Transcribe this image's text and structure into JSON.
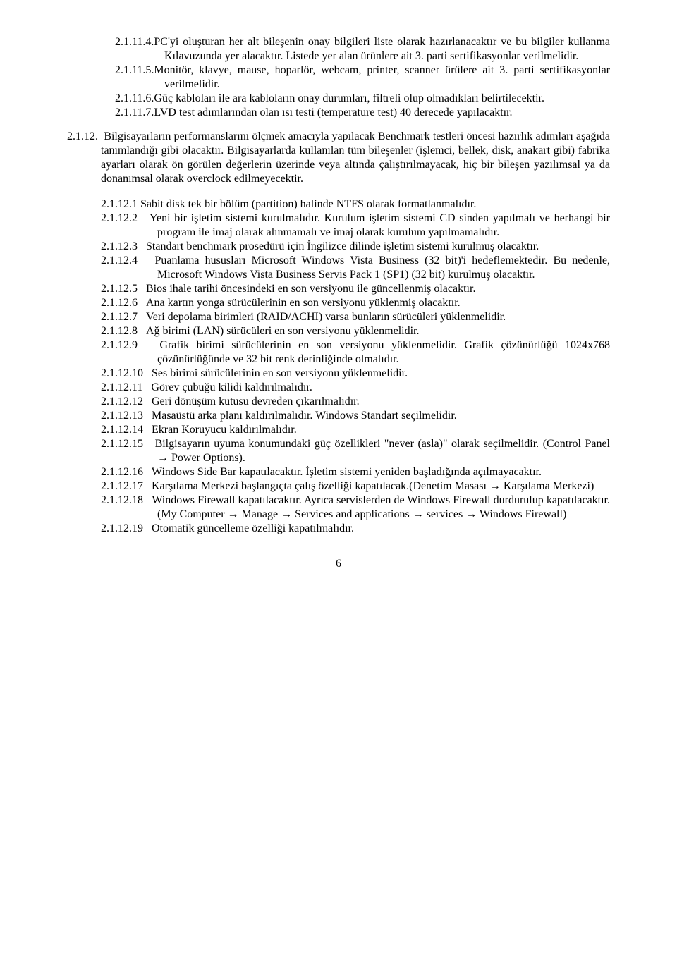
{
  "items11": [
    {
      "num": "2.1.11.4.",
      "text": "PC'yi oluşturan her alt bileşenin onay bilgileri liste olarak hazırlanacaktır ve bu bilgiler kullanma Kılavuzunda yer alacaktır. Listede yer alan ürünlere ait 3. parti sertifikasyonlar verilmelidir."
    },
    {
      "num": "2.1.11.5.",
      "text": "Monitör, klavye, mause, hoparlör, webcam, printer, scanner ürülere ait 3. parti sertifikasyonlar verilmelidir."
    },
    {
      "num": "2.1.11.6.",
      "text": "Güç kabloları ile ara kabloların onay durumları, filtreli olup olmadıkları belirtilecektir."
    },
    {
      "num": "2.1.11.7.",
      "text": "LVD test adımlarından olan ısı testi (temperature test) 40 derecede yapılacaktır."
    }
  ],
  "sec212": {
    "num": "2.1.12.",
    "intro": "Bilgisayarların performanslarını ölçmek amacıyla yapılacak Benchmark testleri öncesi hazırlık adımları aşağıda tanımlandığı gibi olacaktır. Bilgisayarlarda kullanılan tüm bileşenler (işlemci, bellek, disk, anakart gibi) fabrika ayarları olarak ön görülen değerlerin üzerinde veya altında çalıştırılmayacak, hiç bir bileşen yazılımsal ya da donanımsal olarak overclock edilmeyecektir.",
    "subs": [
      {
        "num": "2.1.12.1",
        "text": "Sabit disk tek bir bölüm (partition) halinde NTFS olarak formatlanmalıdır.",
        "wide": false
      },
      {
        "num": "2.1.12.2",
        "text": "Yeni bir işletim sistemi kurulmalıdır. Kurulum işletim sistemi CD sinden yapılmalı ve herhangi bir program ile imaj olarak alınmamalı ve imaj olarak kurulum yapılmamalıdır.",
        "wide": true
      },
      {
        "num": "2.1.12.3",
        "text": "Standart benchmark prosedürü için İngilizce dilinde işletim sistemi kurulmuş olacaktır.",
        "wide": true
      },
      {
        "num": "2.1.12.4",
        "text": "Puanlama hususları Microsoft Windows Vista Business (32 bit)'i hedeflemektedir.  Bu nedenle, Microsoft Windows Vista Business Servis Pack 1 (SP1)  (32 bit) kurulmuş olacaktır.",
        "wide": true
      },
      {
        "num": "2.1.12.5",
        "text": "Bios ihale tarihi öncesindeki en son versiyonu ile güncellenmiş olacaktır.",
        "wide": true
      },
      {
        "num": "2.1.12.6",
        "text": "Ana kartın yonga sürücülerinin en son versiyonu yüklenmiş olacaktır.",
        "wide": true
      },
      {
        "num": "2.1.12.7",
        "text": "Veri depolama birimleri (RAID/ACHI) varsa bunların sürücüleri yüklenmelidir.",
        "wide": true
      },
      {
        "num": "2.1.12.8",
        "text": "Ağ birimi (LAN) sürücüleri en son versiyonu yüklenmelidir.",
        "wide": true
      },
      {
        "num": "2.1.12.9",
        "text": "Grafik birimi sürücülerinin en son versiyonu yüklenmelidir. Grafik çözünürlüğü 1024x768 çözünürlüğünde ve 32 bit renk derinliğinde olmalıdır.",
        "wide": true
      },
      {
        "num": "2.1.12.10",
        "text": "Ses birimi sürücülerinin en son versiyonu yüklenmelidir.",
        "wide": true
      },
      {
        "num": "2.1.12.11",
        "text": "Görev çubuğu kilidi kaldırılmalıdır.",
        "wide": true
      },
      {
        "num": "2.1.12.12",
        "text": "Geri dönüşüm kutusu devreden çıkarılmalıdır.",
        "wide": true
      },
      {
        "num": "2.1.12.13",
        "text": "Masaüstü arka planı kaldırılmalıdır. Windows Standart seçilmelidir.",
        "wide": true
      },
      {
        "num": "2.1.12.14",
        "text": "Ekran Koruyucu kaldırılmalıdır.",
        "wide": true
      },
      {
        "num": "2.1.12.15",
        "text": "Bilgisayarın uyuma konumundaki güç özellikleri \"never (asla)\" olarak seçilmelidir. (Control Panel → Power Options).",
        "wide": true
      },
      {
        "num": "2.1.12.16",
        "text": "Windows Side Bar kapatılacaktır. İşletim sistemi yeniden başladığında açılmayacaktır.",
        "wide": true
      },
      {
        "num": "2.1.12.17",
        "text": "Karşılama Merkezi başlangıçta çalış özelliği kapatılacak.(Denetim Masası → Karşılama Merkezi)",
        "wide": true
      },
      {
        "num": "2.1.12.18",
        "text": "Windows Firewall kapatılacaktır. Ayrıca servislerden de Windows Firewall durdurulup kapatılacaktır. (My Computer → Manage → Services and applications → services → Windows Firewall)",
        "wide": true
      },
      {
        "num": "2.1.12.19",
        "text": "Otomatik güncelleme özelliği kapatılmalıdır.",
        "wide": true
      }
    ]
  },
  "pageNumber": "6"
}
